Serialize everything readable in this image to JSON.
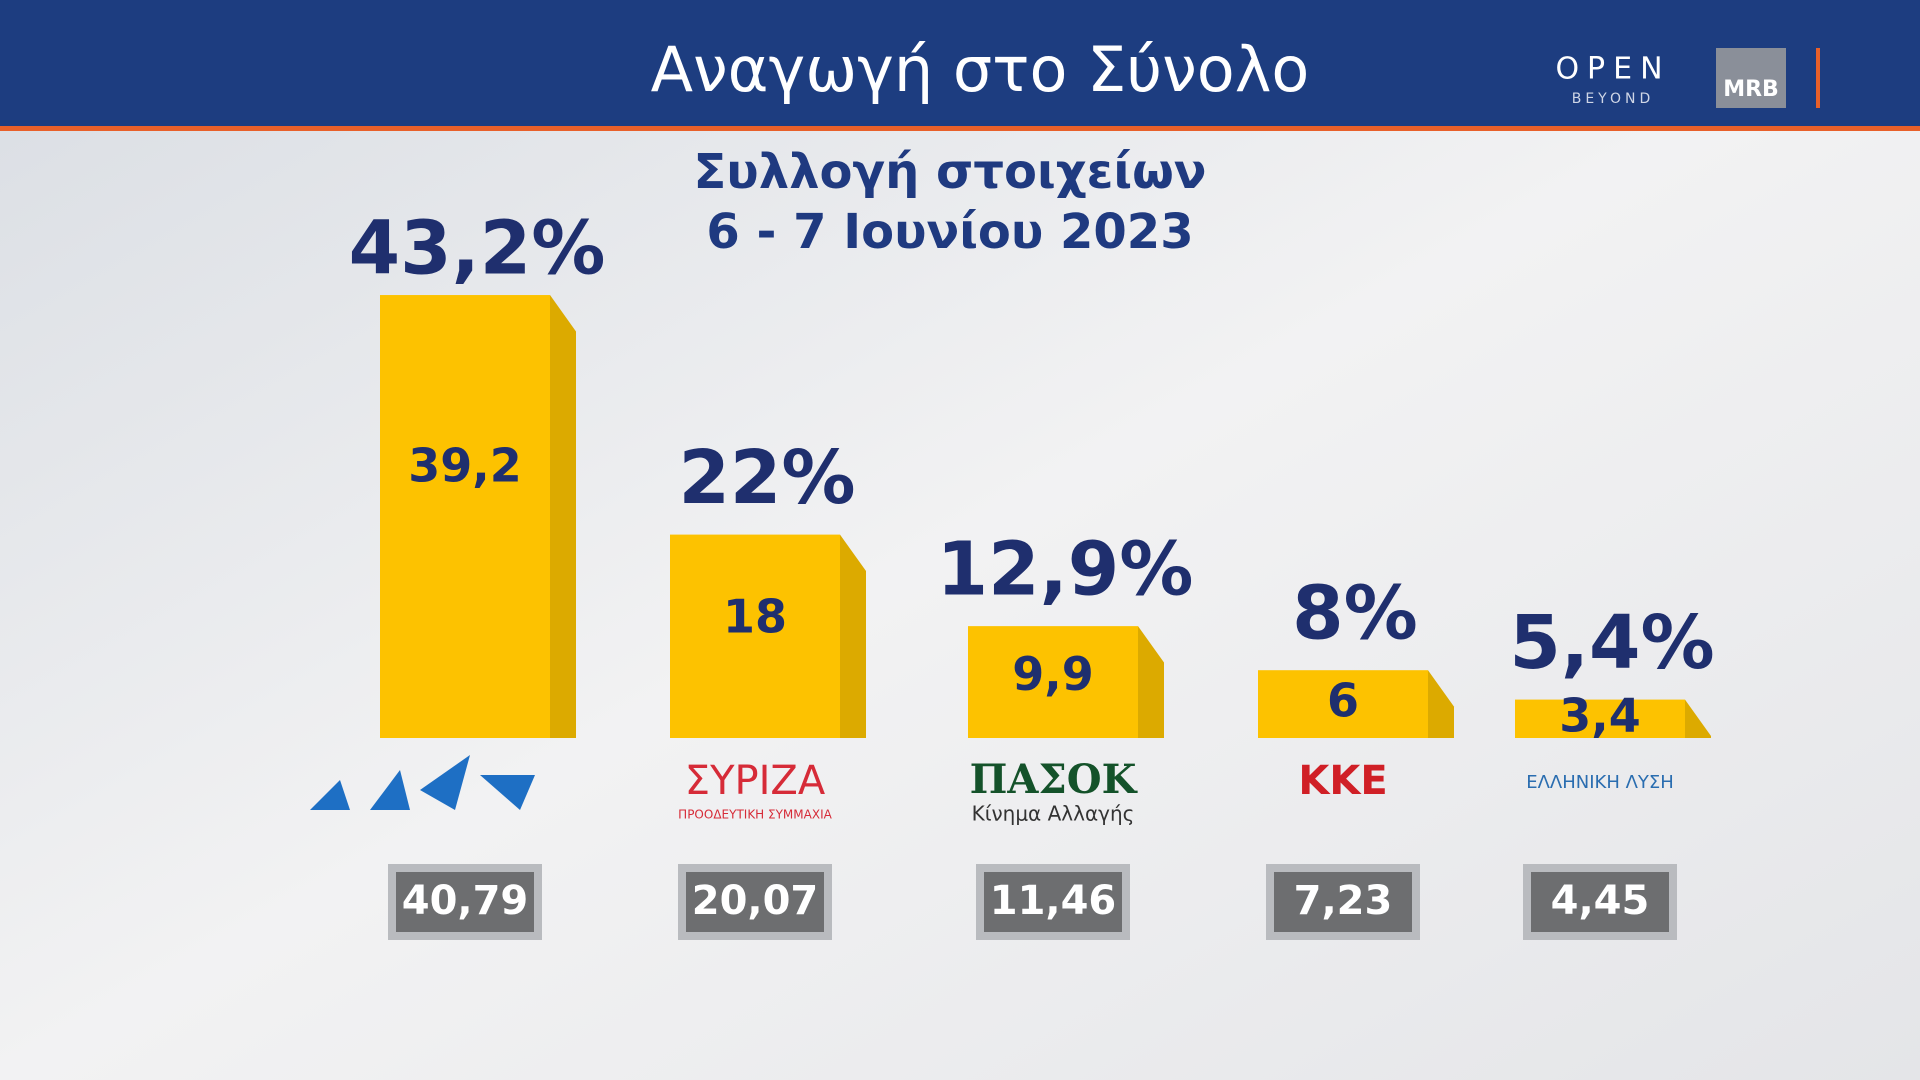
{
  "header": {
    "title": "Αναγωγή στο Σύνολο",
    "brand": "OPEN",
    "brand_sub": "BEYOND",
    "pollster": "MRB"
  },
  "chart_data": {
    "type": "bar",
    "title": "Συλλογή στοιχείων",
    "subtitle": "6 - 7 Ιουνίου 2023",
    "categories": [
      null,
      "ΣΥΡΙΖΑ",
      "ΠΑΣΟΚ",
      "ΚΚΕ",
      "ΕΛΛΗΝΙΚΗ ΛΥΣΗ"
    ],
    "logo_subtexts": [
      null,
      "ΠΡΟΟΔΕΥΤΙΚΗ ΣΥΜΜΑΧΙΑ",
      "Κίνημα Αλλαγής",
      null,
      null
    ],
    "logo_colors": [
      "#1e6fc4",
      "#d62b38",
      "#14522a",
      "#d01f26",
      "#2a6db0"
    ],
    "values": [
      39.2,
      18,
      9.9,
      6,
      3.4
    ],
    "value_labels": [
      "39,2",
      "18",
      "9,9",
      "6",
      "3,4"
    ],
    "percentages": [
      43.2,
      22,
      12.9,
      8,
      5.4
    ],
    "percentage_labels": [
      "43,2%",
      "22%",
      "12,9%",
      "8%",
      "5,4%"
    ],
    "previous": [
      40.79,
      20.07,
      11.46,
      7.23,
      4.45
    ],
    "previous_labels": [
      "40,79",
      "20,07",
      "11,46",
      "7,23",
      "4,45"
    ],
    "color": "#fdc200"
  }
}
